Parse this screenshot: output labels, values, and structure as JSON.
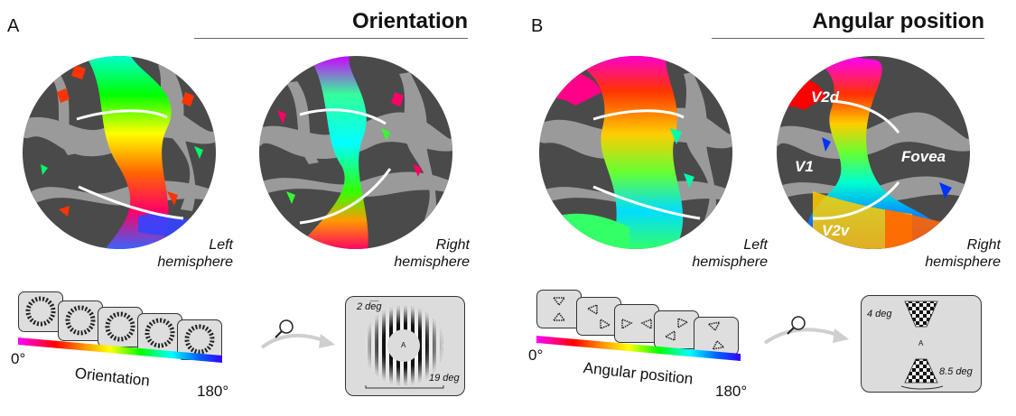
{
  "panel_a": {
    "letter": "A",
    "title": "Orientation",
    "left_hemisphere": "Left\nhemisphere",
    "right_hemisphere": "Right\nhemisphere",
    "colorbar": {
      "start": "0°",
      "end": "180°",
      "label": "Orientation"
    },
    "stimulus_box": {
      "size_top": "2 deg",
      "size_bottom": "19 deg",
      "fixation": "A"
    }
  },
  "panel_b": {
    "letter": "B",
    "title": "Angular position",
    "left_hemisphere": "Left\nhemisphere",
    "right_hemisphere": "Right\nhemisphere",
    "roi_labels": {
      "v2d": "V2d",
      "v1": "V1",
      "v2v": "V2v",
      "fovea": "Fovea"
    },
    "colorbar": {
      "start": "0°",
      "end": "180°",
      "label": "Angular position"
    },
    "stimulus_box": {
      "size_top": "4 deg",
      "size_bottom": "8.5 deg",
      "fixation": "A"
    }
  },
  "colors": {
    "cortex_dark": "#4a4a4a",
    "cortex_light": "#9a9a9a",
    "border_line": "#ffffff",
    "colorbar": [
      "#ff00ff",
      "#ff0000",
      "#ff9900",
      "#ffff00",
      "#00ff00",
      "#00ffff",
      "#0066ff",
      "#3300ff"
    ]
  }
}
